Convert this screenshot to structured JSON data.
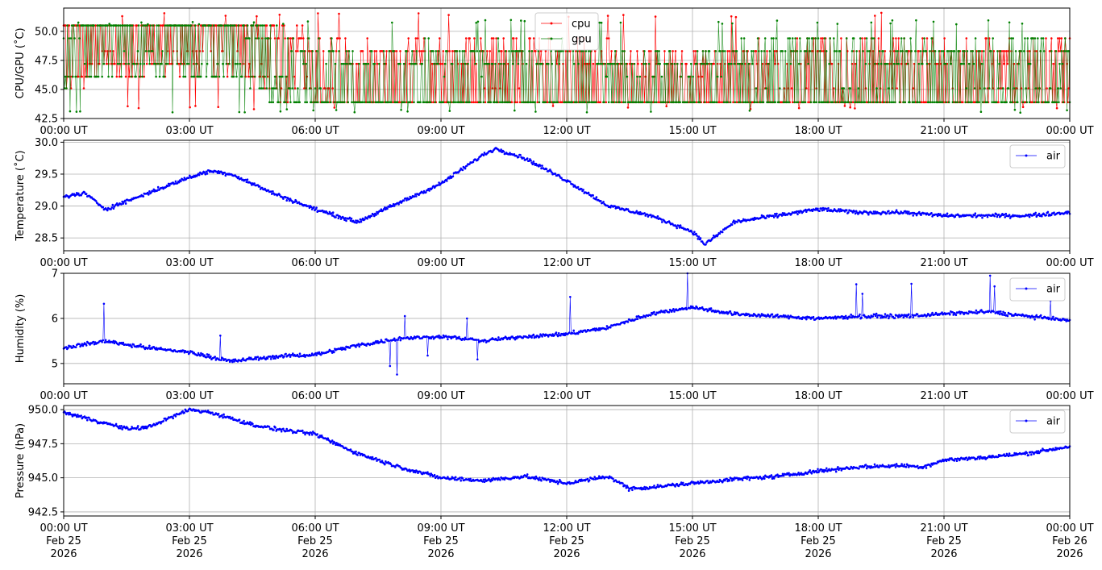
{
  "chart_data": [
    {
      "type": "line",
      "ylabel": "CPU/GPU (˚C)",
      "ylim": [
        42.5,
        52.0
      ],
      "yticks": [
        42.5,
        45.0,
        47.5,
        50.0
      ],
      "ytick_labels": [
        "42.5",
        "45.0",
        "47.5",
        "50.0"
      ],
      "xlim": [
        "2026-02-25T00:00Z",
        "2026-02-26T00:00Z"
      ],
      "x_tick_labels": [
        "00:00 UT",
        "03:00 UT",
        "06:00 UT",
        "09:00 UT",
        "12:00 UT",
        "15:00 UT",
        "18:00 UT",
        "21:00 UT",
        "00:00 UT"
      ],
      "grid": true,
      "legend_position": "top-center",
      "series": [
        {
          "name": "cpu",
          "color": "#ff0000",
          "min": 43.3,
          "max": 51.6,
          "levels": [
            43.9,
            45.1,
            46.1,
            47.2,
            48.3,
            49.4,
            50.5
          ],
          "approx_values_by_hour": [
            48.3,
            49.4,
            49.9,
            49.4,
            49.4,
            47.8,
            46.7,
            45.6,
            45.6,
            45.6,
            46.1,
            46.1,
            45.6,
            45.6,
            45.0,
            45.0,
            45.6,
            46.1,
            46.1,
            46.1,
            46.1,
            45.6,
            46.1,
            46.1,
            46.1
          ]
        },
        {
          "name": "gpu",
          "color": "#008000",
          "min": 43.0,
          "max": 51.0,
          "levels": [
            43.9,
            45.1,
            46.1,
            47.2,
            48.3,
            49.4,
            50.5
          ],
          "approx_values_by_hour": [
            47.8,
            48.9,
            49.4,
            48.9,
            48.9,
            47.2,
            46.1,
            45.6,
            45.6,
            45.6,
            45.6,
            45.6,
            45.6,
            45.0,
            45.0,
            45.0,
            45.6,
            46.1,
            46.1,
            46.1,
            46.1,
            45.6,
            46.1,
            46.1,
            46.1
          ]
        }
      ]
    },
    {
      "type": "line",
      "ylabel": "Temperature (˚C)",
      "ylim": [
        28.3,
        30.03
      ],
      "yticks": [
        28.5,
        29.0,
        29.5,
        30.0
      ],
      "ytick_labels": [
        "28.5",
        "29.0",
        "29.5",
        "30.0"
      ],
      "xlim": [
        "2026-02-25T00:00Z",
        "2026-02-26T00:00Z"
      ],
      "x_tick_labels": [
        "00:00 UT",
        "03:00 UT",
        "06:00 UT",
        "09:00 UT",
        "12:00 UT",
        "15:00 UT",
        "18:00 UT",
        "21:00 UT",
        "00:00 UT"
      ],
      "grid": true,
      "legend_position": "top-right",
      "series": [
        {
          "name": "air",
          "color": "#0000ff",
          "hours": [
            0,
            0.5,
            0.8,
            1,
            2,
            3,
            3.5,
            4,
            5,
            6,
            7,
            8,
            9,
            10,
            10.3,
            11,
            12,
            13,
            14,
            15,
            15.3,
            16,
            17,
            18,
            19,
            20,
            21,
            22,
            23,
            24
          ],
          "values": [
            29.15,
            29.2,
            29.05,
            28.95,
            29.2,
            29.45,
            29.55,
            29.5,
            29.2,
            28.95,
            28.75,
            29.05,
            29.35,
            29.8,
            29.9,
            29.75,
            29.4,
            29.0,
            28.85,
            28.6,
            28.4,
            28.75,
            28.85,
            28.95,
            28.9,
            28.9,
            28.85,
            28.85,
            28.85,
            28.9
          ]
        }
      ]
    },
    {
      "type": "line",
      "ylabel": "Humidity (%)",
      "ylim": [
        4.55,
        7.0
      ],
      "yticks": [
        5,
        6,
        7
      ],
      "ytick_labels": [
        "5",
        "6",
        "7"
      ],
      "xlim": [
        "2026-02-25T00:00Z",
        "2026-02-26T00:00Z"
      ],
      "x_tick_labels": [
        "00:00 UT",
        "03:00 UT",
        "06:00 UT",
        "09:00 UT",
        "12:00 UT",
        "15:00 UT",
        "18:00 UT",
        "21:00 UT",
        "00:00 UT"
      ],
      "grid": true,
      "legend_position": "top-right",
      "series": [
        {
          "name": "air",
          "color": "#0000ff",
          "hours": [
            0,
            1,
            2,
            3,
            4,
            5,
            6,
            7,
            8,
            9,
            10,
            11,
            12,
            13,
            14,
            15,
            16,
            17,
            18,
            19,
            20,
            21,
            22,
            23,
            24
          ],
          "values": [
            5.35,
            5.5,
            5.35,
            5.25,
            5.05,
            5.15,
            5.2,
            5.4,
            5.55,
            5.6,
            5.5,
            5.6,
            5.65,
            5.8,
            6.1,
            6.25,
            6.1,
            6.05,
            6.0,
            6.05,
            6.05,
            6.1,
            6.15,
            6.05,
            5.95
          ]
        }
      ]
    },
    {
      "type": "line",
      "ylabel": "Pressure (hPa)",
      "ylim": [
        942.2,
        950.3
      ],
      "yticks": [
        942.5,
        945.0,
        947.5,
        950.0
      ],
      "ytick_labels": [
        "942.5",
        "945.0",
        "947.5",
        "950.0"
      ],
      "xlim": [
        "2026-02-25T00:00Z",
        "2026-02-26T00:00Z"
      ],
      "x_tick_labels": [
        [
          "00:00 UT",
          "Feb 25",
          "2026"
        ],
        [
          "03:00 UT",
          "Feb 25",
          "2026"
        ],
        [
          "06:00 UT",
          "Feb 25",
          "2026"
        ],
        [
          "09:00 UT",
          "Feb 25",
          "2026"
        ],
        [
          "12:00 UT",
          "Feb 25",
          "2026"
        ],
        [
          "15:00 UT",
          "Feb 25",
          "2026"
        ],
        [
          "18:00 UT",
          "Feb 25",
          "2026"
        ],
        [
          "21:00 UT",
          "Feb 25",
          "2026"
        ],
        [
          "00:00 UT",
          "Feb 26",
          "2026"
        ]
      ],
      "grid": true,
      "legend_position": "top-right",
      "series": [
        {
          "name": "air",
          "color": "#0000ff",
          "hours": [
            0,
            1,
            1.5,
            2,
            3,
            3.5,
            4.5,
            5,
            6,
            7,
            8,
            9,
            10,
            11,
            12,
            13,
            13.5,
            14,
            15,
            16,
            17,
            18,
            19,
            20,
            20.5,
            21,
            22,
            23,
            24
          ],
          "values": [
            949.8,
            949.0,
            948.6,
            948.7,
            950.0,
            949.8,
            948.9,
            948.6,
            948.2,
            946.8,
            945.8,
            945.0,
            944.8,
            945.1,
            944.6,
            945.1,
            944.2,
            944.3,
            944.6,
            944.9,
            945.1,
            945.5,
            945.8,
            945.9,
            945.8,
            946.3,
            946.5,
            946.8,
            947.3
          ]
        }
      ]
    }
  ]
}
